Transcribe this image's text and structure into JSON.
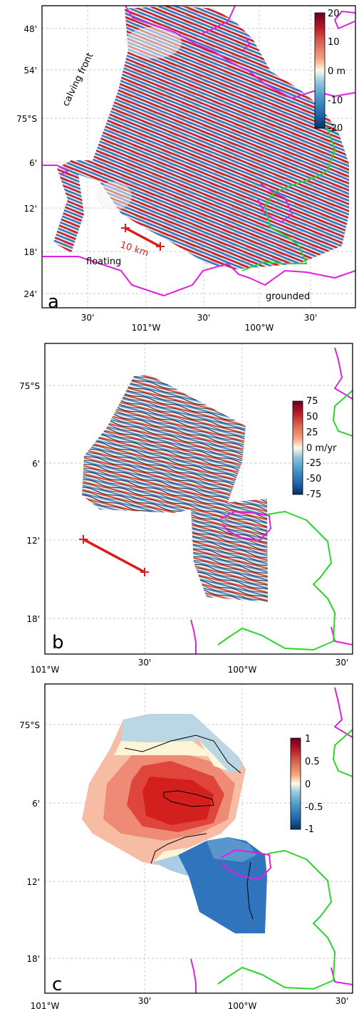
{
  "panels": [
    {
      "id": "a",
      "label": "a",
      "y_ticks": [
        "48'",
        "54'",
        "75°S",
        "6'",
        "12'",
        "18'",
        "24'"
      ],
      "x_ticks": [
        "30'",
        "101°W",
        "30'",
        "100°W",
        "30'"
      ],
      "colorbar": {
        "ticks": [
          "20",
          "10",
          "0 m",
          "-10",
          "-20"
        ],
        "min": -20,
        "max": 20
      },
      "annotations": {
        "calving_front": "calving front",
        "floating": "floating",
        "grounded": "grounded",
        "scale": "10 km"
      }
    },
    {
      "id": "b",
      "label": "b",
      "y_ticks": [
        "75°S",
        "6'",
        "12'",
        "18'"
      ],
      "x_ticks": [
        "101°W",
        "30'",
        "100°W",
        "30'"
      ],
      "colorbar": {
        "ticks": [
          "75",
          "50",
          "25",
          "0 m/yr",
          "-25",
          "-50",
          "-75"
        ],
        "min": -75,
        "max": 75
      }
    },
    {
      "id": "c",
      "label": "c",
      "y_ticks": [
        "75°S",
        "6'",
        "12'",
        "18'"
      ],
      "x_ticks": [
        "101°W",
        "30'",
        "100°W",
        "30'"
      ],
      "colorbar": {
        "ticks": [
          "1",
          "0.5",
          "0",
          "-0.5",
          "-1"
        ],
        "min": -1,
        "max": 1
      }
    }
  ],
  "colors": {
    "grounding_line_magenta": "#e020e0",
    "grounding_line_green": "#2cd42c",
    "scale_bar": "#dd1a1a",
    "colormap": [
      "#053061",
      "#2166ac",
      "#4393c3",
      "#92c5de",
      "#fdfbe6",
      "#f4a582",
      "#d6604d",
      "#b2182b",
      "#67001f"
    ]
  }
}
